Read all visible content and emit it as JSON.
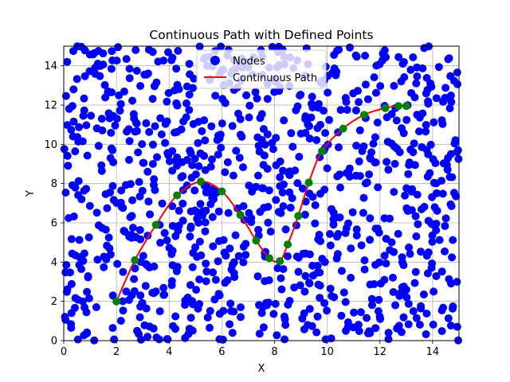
{
  "chart_data": {
    "type": "scatter",
    "title": "Continuous Path with Defined Points",
    "xlabel": "X",
    "ylabel": "Y",
    "xlim": [
      0,
      15
    ],
    "ylim": [
      0,
      15
    ],
    "xticks": [
      0,
      2,
      4,
      6,
      8,
      10,
      12,
      14
    ],
    "yticks": [
      0,
      2,
      4,
      6,
      8,
      10,
      12,
      14
    ],
    "grid": true,
    "legend": {
      "placement": "top-center",
      "entries": [
        "Nodes",
        "Continuous Path"
      ]
    },
    "colors": {
      "nodes": "#0000ff",
      "path": "#ff0000",
      "waypoints": "#008000",
      "grid": "#b0b0b0"
    },
    "nodes": {
      "name": "Nodes",
      "count": 1000,
      "distribution": "uniform random over x 0-15, y 0-15"
    },
    "path": {
      "name": "Continuous Path",
      "points": [
        [
          2.0,
          2.0
        ],
        [
          2.7,
          4.1
        ],
        [
          3.5,
          5.9
        ],
        [
          4.3,
          7.4
        ],
        [
          5.2,
          8.1
        ],
        [
          6.0,
          7.6
        ],
        [
          6.7,
          6.4
        ],
        [
          7.3,
          5.1
        ],
        [
          7.8,
          4.2
        ],
        [
          8.2,
          4.05
        ],
        [
          8.5,
          4.9
        ],
        [
          8.9,
          6.35
        ],
        [
          9.3,
          8.05
        ],
        [
          9.8,
          9.65
        ],
        [
          10.6,
          10.8
        ],
        [
          11.4,
          11.5
        ],
        [
          12.2,
          11.85
        ],
        [
          12.7,
          11.95
        ],
        [
          13.0,
          11.95
        ]
      ]
    }
  }
}
